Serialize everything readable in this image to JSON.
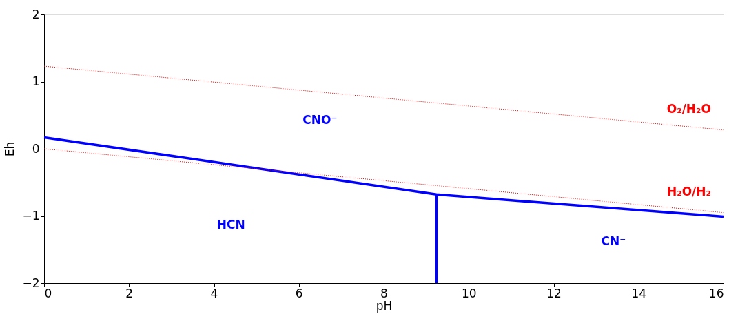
{
  "chart_data": {
    "type": "line",
    "xlabel": "pH",
    "ylabel": "Eh",
    "xlim": [
      0,
      16
    ],
    "ylim": [
      -2,
      2
    ],
    "xticks": [
      0,
      2,
      4,
      6,
      8,
      10,
      12,
      14,
      16
    ],
    "yticks": [
      -2,
      -1,
      0,
      1,
      2
    ],
    "grid": false,
    "marker": "none",
    "series": [
      {
        "color": "#0000ff",
        "x": [
          0,
          9.24,
          16
        ],
        "values": [
          0.17,
          -0.68,
          -1.01
        ],
        "line_style": "solid"
      },
      {
        "color": "#0000ff",
        "x": [
          9.24,
          9.24
        ],
        "values": [
          -0.68,
          -2
        ],
        "line_style": "solid"
      },
      {
        "name": "O₂/H₂O",
        "color": "#ff0000",
        "x": [
          0,
          16
        ],
        "values": [
          1.23,
          0.28
        ],
        "line_style": "dotted"
      },
      {
        "name": "H₂O/H₂",
        "color": "#ff0000",
        "x": [
          0,
          16
        ],
        "values": [
          0,
          -0.95
        ],
        "line_style": "dotted"
      }
    ],
    "annotations": [
      "CNO⁻",
      "HCN",
      "CN⁻"
    ]
  }
}
